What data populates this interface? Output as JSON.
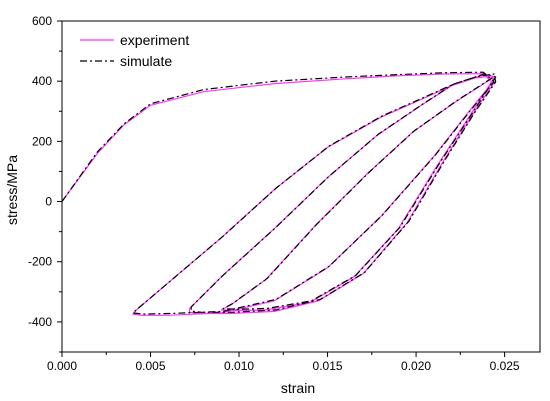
{
  "chart_data": {
    "type": "line",
    "xlabel": "strain",
    "ylabel": "stress/MPa",
    "xlim": [
      0.0,
      0.027
    ],
    "ylim": [
      -500,
      600
    ],
    "x_ticks": [
      "0.000",
      "0.005",
      "0.010",
      "0.015",
      "0.020",
      "0.025"
    ],
    "y_ticks": [
      "-400",
      "-200",
      "0",
      "200",
      "400",
      "600"
    ],
    "x_tick_values": [
      0.0,
      0.005,
      0.01,
      0.015,
      0.02,
      0.025
    ],
    "y_tick_values": [
      -400,
      -200,
      0,
      200,
      400,
      600
    ],
    "grid": false,
    "legend_position": "top-left",
    "series": [
      {
        "name": "experiment",
        "color": "#ff33ff",
        "style": "solid",
        "x": [
          0.0,
          0.002,
          0.0035,
          0.005,
          0.008,
          0.012,
          0.016,
          0.019,
          0.0215,
          0.0238,
          0.0243,
          0.023,
          0.021,
          0.018,
          0.015,
          0.012,
          0.009,
          0.006,
          0.0045,
          0.004,
          0.0042,
          0.006,
          0.009,
          0.012,
          0.015,
          0.018,
          0.0205,
          0.022,
          0.0233,
          0.0243,
          0.0244,
          0.0232,
          0.0215,
          0.0195,
          0.017,
          0.0145,
          0.012,
          0.0095,
          0.0078,
          0.0072,
          0.0072,
          0.009,
          0.012,
          0.015,
          0.0178,
          0.0203,
          0.022,
          0.0238,
          0.0244,
          0.0232,
          0.0212,
          0.019,
          0.0165,
          0.014,
          0.0115,
          0.0098,
          0.009,
          0.0095,
          0.0115,
          0.0143,
          0.0172,
          0.0198,
          0.0222,
          0.0243
        ],
        "y": [
          0,
          160,
          255,
          320,
          365,
          392,
          408,
          418,
          424,
          425,
          395,
          300,
          150,
          -50,
          -220,
          -330,
          -370,
          -378,
          -378,
          -374,
          -360,
          -270,
          -120,
          40,
          180,
          280,
          345,
          385,
          410,
          418,
          395,
          290,
          130,
          -70,
          -240,
          -330,
          -365,
          -372,
          -372,
          -368,
          -356,
          -250,
          -90,
          80,
          220,
          320,
          385,
          420,
          410,
          300,
          120,
          -90,
          -250,
          -335,
          -360,
          -362,
          -360,
          -345,
          -260,
          -80,
          90,
          230,
          330,
          410
        ]
      },
      {
        "name": "simulate",
        "color": "#000000",
        "style": "dashdot",
        "x": [
          0.0,
          0.002,
          0.0035,
          0.005,
          0.008,
          0.012,
          0.016,
          0.019,
          0.0215,
          0.0238,
          0.0244,
          0.0231,
          0.0211,
          0.0181,
          0.0151,
          0.0121,
          0.0091,
          0.0061,
          0.0046,
          0.004,
          0.0043,
          0.0061,
          0.0091,
          0.0121,
          0.0151,
          0.0181,
          0.0206,
          0.0221,
          0.0234,
          0.0244,
          0.0245,
          0.0233,
          0.0216,
          0.0196,
          0.0171,
          0.0146,
          0.0121,
          0.0096,
          0.0079,
          0.0073,
          0.0073,
          0.0091,
          0.0121,
          0.0151,
          0.0179,
          0.0204,
          0.0221,
          0.0239,
          0.0245,
          0.0233,
          0.0213,
          0.0191,
          0.0166,
          0.0141,
          0.0116,
          0.0099,
          0.0091,
          0.0096,
          0.0116,
          0.0144,
          0.0173,
          0.0199,
          0.0223,
          0.0244
        ],
        "y": [
          0,
          165,
          258,
          325,
          372,
          400,
          414,
          422,
          428,
          430,
          398,
          305,
          155,
          -45,
          -215,
          -325,
          -365,
          -372,
          -374,
          -370,
          -355,
          -265,
          -115,
          45,
          185,
          285,
          350,
          390,
          415,
          424,
          398,
          295,
          135,
          -65,
          -235,
          -325,
          -360,
          -368,
          -368,
          -364,
          -350,
          -245,
          -85,
          85,
          225,
          325,
          390,
          425,
          414,
          305,
          125,
          -85,
          -245,
          -330,
          -355,
          -358,
          -356,
          -340,
          -255,
          -75,
          95,
          235,
          335,
          415
        ]
      }
    ]
  }
}
